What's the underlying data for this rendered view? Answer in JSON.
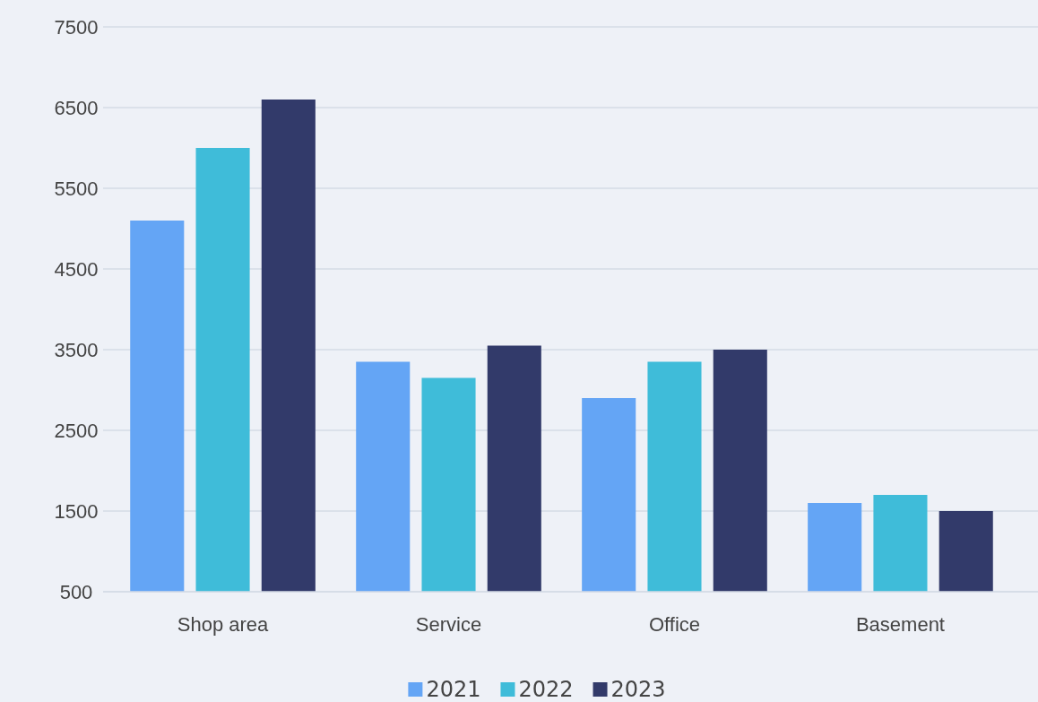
{
  "chart_data": {
    "type": "bar",
    "categories": [
      "Shop area",
      "Service",
      "Office",
      "Basement"
    ],
    "series": [
      {
        "name": "2021",
        "color": "#64a5f5",
        "values": [
          5100,
          3350,
          2900,
          1600
        ]
      },
      {
        "name": "2022",
        "color": "#3fbcd9",
        "values": [
          6000,
          3150,
          3350,
          1700
        ]
      },
      {
        "name": "2023",
        "color": "#323a6a",
        "values": [
          6600,
          3550,
          3500,
          1500
        ]
      }
    ],
    "ylim": [
      500,
      7500
    ],
    "yticks": [
      500,
      1500,
      2500,
      3500,
      4500,
      5500,
      6500,
      7500
    ],
    "grid": "y",
    "legend": "bottom"
  }
}
